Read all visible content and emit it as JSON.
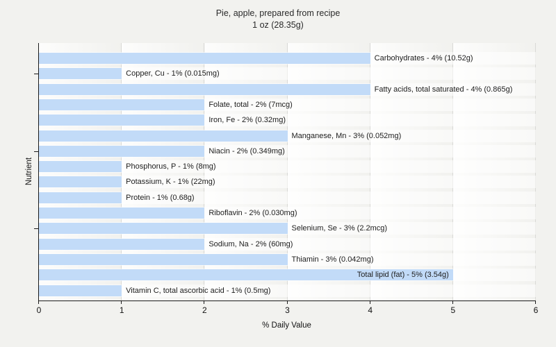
{
  "title": {
    "line1": "Pie, apple, prepared from recipe",
    "line2": "1 oz (28.35g)"
  },
  "chart_data": {
    "type": "bar",
    "orientation": "horizontal",
    "title": "Pie, apple, prepared from recipe — 1 oz (28.35g)",
    "xlabel": "% Daily Value",
    "ylabel": "Nutrient",
    "xlim": [
      0,
      6
    ],
    "x_ticks": [
      0,
      1,
      2,
      3,
      4,
      5,
      6
    ],
    "grid": "vertical",
    "legend": "none",
    "bar_color": "#c2dbf8",
    "categories": [
      "Carbohydrates",
      "Copper, Cu",
      "Fatty acids, total saturated",
      "Folate, total",
      "Iron, Fe",
      "Manganese, Mn",
      "Niacin",
      "Phosphorus, P",
      "Potassium, K",
      "Protein",
      "Riboflavin",
      "Selenium, Se",
      "Sodium, Na",
      "Thiamin",
      "Total lipid (fat)",
      "Vitamin C, total ascorbic acid"
    ],
    "values": [
      4,
      1,
      4,
      2,
      2,
      3,
      2,
      1,
      1,
      1,
      2,
      3,
      2,
      3,
      5,
      1
    ],
    "amounts": [
      "10.52g",
      "0.015mg",
      "0.865g",
      "7mcg",
      "0.32mg",
      "0.052mg",
      "0.349mg",
      "8mg",
      "22mg",
      "0.68g",
      "0.030mg",
      "2.2mcg",
      "60mg",
      "0.042mg",
      "3.54g",
      "0.5mg"
    ],
    "bar_labels": [
      "Carbohydrates - 4% (10.52g)",
      "Copper, Cu - 1% (0.015mg)",
      "Fatty acids, total saturated - 4% (0.865g)",
      "Folate, total - 2% (7mcg)",
      "Iron, Fe - 2% (0.32mg)",
      "Manganese, Mn - 3% (0.052mg)",
      "Niacin - 2% (0.349mg)",
      "Phosphorus, P - 1% (8mg)",
      "Potassium, K - 1% (22mg)",
      "Protein - 1% (0.68g)",
      "Riboflavin - 2% (0.030mg)",
      "Selenium, Se - 3% (2.2mcg)",
      "Sodium, Na - 2% (60mg)",
      "Thiamin - 3% (0.042mg)",
      "Total lipid (fat) - 5% (3.54g)",
      "Vitamin C, total ascorbic acid - 1% (0.5mg)"
    ],
    "label_inside": [
      false,
      false,
      false,
      false,
      false,
      false,
      false,
      false,
      false,
      false,
      false,
      false,
      false,
      false,
      true,
      false
    ]
  },
  "colors": {
    "figure_background": "#f2f2ef",
    "bar_fill": "#c2dbf8",
    "gridline": "#d9d9d6",
    "axis": "#1a1a1a",
    "text": "#1c1c1c"
  }
}
